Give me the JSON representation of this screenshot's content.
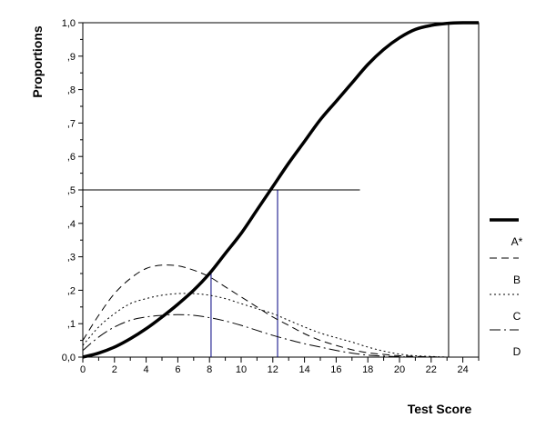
{
  "chart_data": {
    "type": "line",
    "title": "",
    "xlabel": "Test Score",
    "ylabel": "Proportions",
    "xlim": [
      0,
      25
    ],
    "ylim": [
      0,
      1
    ],
    "grid": false,
    "legend_position": "right",
    "x_ticks": [
      0,
      2,
      4,
      6,
      8,
      10,
      12,
      14,
      16,
      18,
      20,
      22,
      24
    ],
    "y_ticks": [
      {
        "value": 0.0,
        "label": "0,0"
      },
      {
        "value": 0.1,
        "label": ",1"
      },
      {
        "value": 0.2,
        "label": ",2"
      },
      {
        "value": 0.3,
        "label": ",3"
      },
      {
        "value": 0.4,
        "label": ",4"
      },
      {
        "value": 0.5,
        "label": ",5"
      },
      {
        "value": 0.6,
        "label": ",6"
      },
      {
        "value": 0.7,
        "label": ",7"
      },
      {
        "value": 0.8,
        "label": ",8"
      },
      {
        "value": 0.9,
        "label": ",9"
      },
      {
        "value": 1.0,
        "label": "1,0"
      }
    ],
    "series": [
      {
        "name": "A*",
        "style": "solid-thick",
        "color": "#000000",
        "x": [
          0,
          1,
          2,
          3,
          4,
          5,
          6,
          7,
          8,
          9,
          10,
          11,
          12,
          13,
          14,
          15,
          16,
          17,
          18,
          19,
          20,
          21,
          22,
          23,
          24,
          25
        ],
        "y": [
          0.0,
          0.012,
          0.03,
          0.055,
          0.085,
          0.12,
          0.158,
          0.2,
          0.25,
          0.31,
          0.37,
          0.44,
          0.51,
          0.58,
          0.645,
          0.71,
          0.765,
          0.82,
          0.875,
          0.92,
          0.955,
          0.98,
          0.992,
          0.998,
          1.0,
          1.0
        ]
      },
      {
        "name": "B",
        "style": "long-dash",
        "color": "#000000",
        "x": [
          0,
          1,
          2,
          3,
          4,
          5,
          6,
          7,
          8,
          9,
          10,
          11,
          12,
          13,
          14,
          15,
          16,
          17,
          18,
          19,
          20,
          21,
          22,
          23
        ],
        "y": [
          0.05,
          0.125,
          0.19,
          0.235,
          0.265,
          0.275,
          0.273,
          0.26,
          0.24,
          0.21,
          0.18,
          0.15,
          0.12,
          0.095,
          0.07,
          0.05,
          0.035,
          0.022,
          0.013,
          0.008,
          0.004,
          0.002,
          0.001,
          0.0
        ]
      },
      {
        "name": "C",
        "style": "dotted",
        "color": "#000000",
        "x": [
          0,
          1,
          2,
          3,
          4,
          5,
          6,
          7,
          8,
          9,
          10,
          11,
          12,
          13,
          14,
          15,
          16,
          17,
          18,
          19,
          20,
          21,
          22,
          23
        ],
        "y": [
          0.035,
          0.09,
          0.13,
          0.16,
          0.175,
          0.185,
          0.19,
          0.19,
          0.185,
          0.175,
          0.16,
          0.145,
          0.13,
          0.11,
          0.09,
          0.072,
          0.058,
          0.045,
          0.03,
          0.018,
          0.009,
          0.004,
          0.002,
          0.0
        ]
      },
      {
        "name": "D",
        "style": "dash-dot",
        "color": "#000000",
        "x": [
          0,
          1,
          2,
          3,
          4,
          5,
          6,
          7,
          8,
          9,
          10,
          11,
          12,
          13,
          14,
          15,
          16,
          17,
          18,
          19,
          20,
          21,
          22,
          23
        ],
        "y": [
          0.02,
          0.06,
          0.09,
          0.11,
          0.12,
          0.125,
          0.127,
          0.125,
          0.118,
          0.108,
          0.095,
          0.08,
          0.065,
          0.052,
          0.04,
          0.03,
          0.02,
          0.012,
          0.006,
          0.003,
          0.001,
          0.0,
          0.0,
          0.0
        ]
      }
    ],
    "reference_lines": [
      {
        "type": "horizontal",
        "y": 0.5,
        "x_from": 0,
        "x_to": 17.5,
        "color": "#000000"
      },
      {
        "type": "vertical",
        "x": 8.1,
        "y_from": 0,
        "y_to": 0.25,
        "color": "#000080"
      },
      {
        "type": "vertical",
        "x": 12.3,
        "y_from": 0,
        "y_to": 0.5,
        "color": "#000080"
      },
      {
        "type": "vertical",
        "x": 23.1,
        "y_from": 0,
        "y_to": 1.0,
        "color": "#000000"
      }
    ]
  }
}
